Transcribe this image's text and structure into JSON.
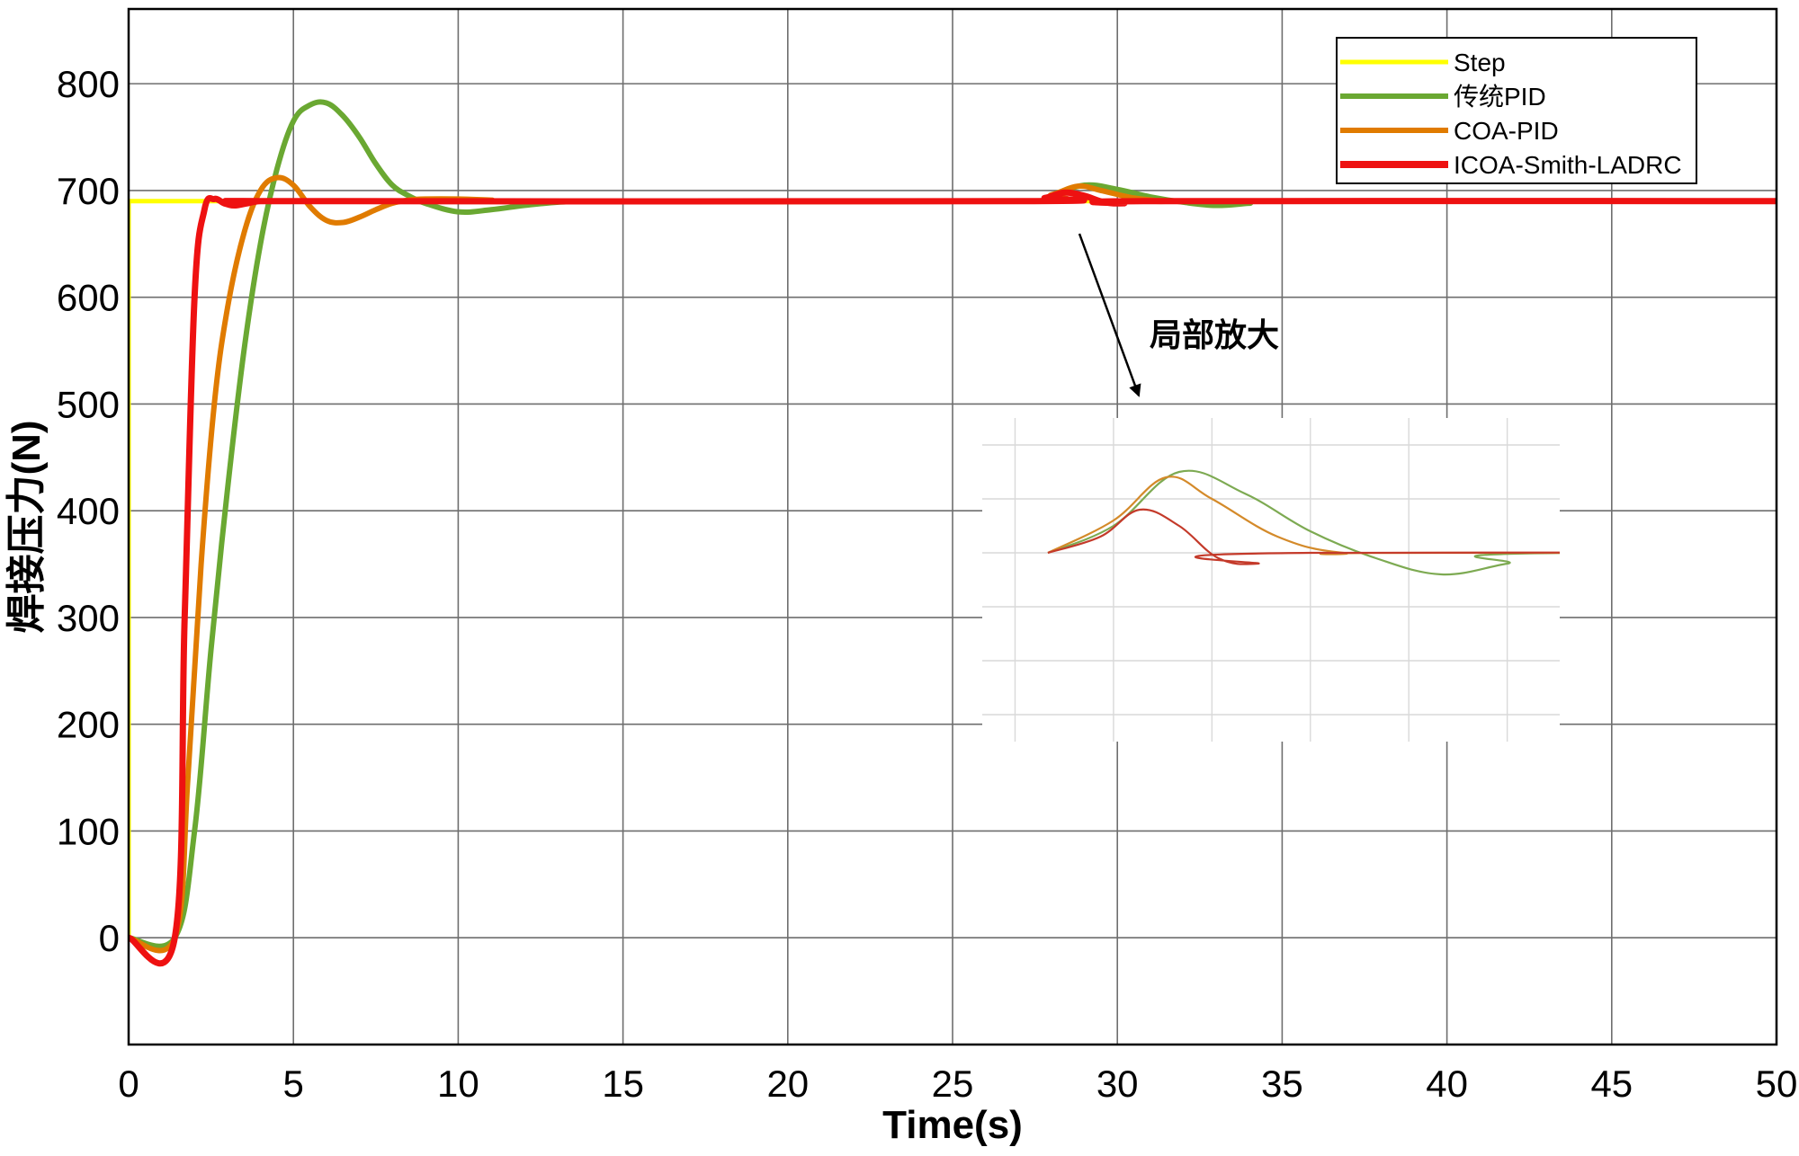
{
  "chart_data": {
    "type": "line",
    "xlabel": "Time(s)",
    "ylabel": "焊接压力(N)",
    "xlim": [
      0,
      50
    ],
    "ylim": [
      -100,
      870
    ],
    "xticks": [
      "0",
      "5",
      "10",
      "15",
      "20",
      "25",
      "30",
      "35",
      "40",
      "45",
      "50"
    ],
    "yticks": [
      "0",
      "100",
      "200",
      "300",
      "400",
      "500",
      "600",
      "700",
      "800"
    ],
    "grid": true,
    "legend_position": "top-right",
    "annotation": "局部放大",
    "series": [
      {
        "name": "Step",
        "color": "#ffff00",
        "x": [
          0,
          0,
          50
        ],
        "y": [
          0,
          690,
          690
        ]
      },
      {
        "name": "传统PID",
        "color": "#6aa832",
        "x": [
          0,
          1.4,
          2.0,
          2.5,
          3.0,
          3.5,
          4.0,
          4.5,
          5.0,
          5.5,
          6.0,
          6.5,
          7.0,
          7.5,
          8.0,
          8.5,
          9.0,
          10.0,
          11.0,
          12.0,
          13.0,
          14.0,
          15.0,
          27.0,
          28.0,
          29.0,
          30.0,
          31.0,
          32.0,
          33.0,
          34.0,
          35.0,
          50.0
        ],
        "y": [
          0,
          0,
          100,
          270,
          420,
          550,
          650,
          720,
          765,
          780,
          782,
          770,
          750,
          725,
          705,
          695,
          688,
          680,
          682,
          686,
          689,
          690,
          690,
          690,
          695,
          705,
          701,
          694,
          689,
          686,
          688,
          690,
          690
        ]
      },
      {
        "name": "COA-PID",
        "color": "#e07b00",
        "x": [
          0,
          1.4,
          1.8,
          2.2,
          2.6,
          3.0,
          3.5,
          4.0,
          4.5,
          5.0,
          5.5,
          6.0,
          6.5,
          7.0,
          7.5,
          8.0,
          8.5,
          9.0,
          10.0,
          11.0,
          12.0,
          27.0,
          28.0,
          28.8,
          29.5,
          30.5,
          31.5,
          33.0,
          50.0
        ],
        "y": [
          0,
          0,
          150,
          350,
          500,
          590,
          660,
          700,
          712,
          705,
          685,
          672,
          670,
          675,
          682,
          688,
          691,
          692,
          692,
          691,
          690,
          690,
          696,
          704,
          700,
          693,
          690,
          690,
          690
        ]
      },
      {
        "name": "ICOA-Smith-LADRC",
        "color": "#ee1111",
        "x": [
          0,
          1.4,
          1.7,
          2.0,
          2.3,
          2.6,
          2.9,
          3.2,
          3.6,
          4.0,
          5.0,
          27.0,
          27.8,
          28.4,
          29.0,
          29.6,
          30.2,
          31.0,
          50.0
        ],
        "y": [
          0,
          0,
          300,
          600,
          682,
          692,
          688,
          686,
          688,
          690,
          690,
          690,
          693,
          698,
          695,
          689,
          688,
          690,
          690
        ]
      }
    ]
  }
}
